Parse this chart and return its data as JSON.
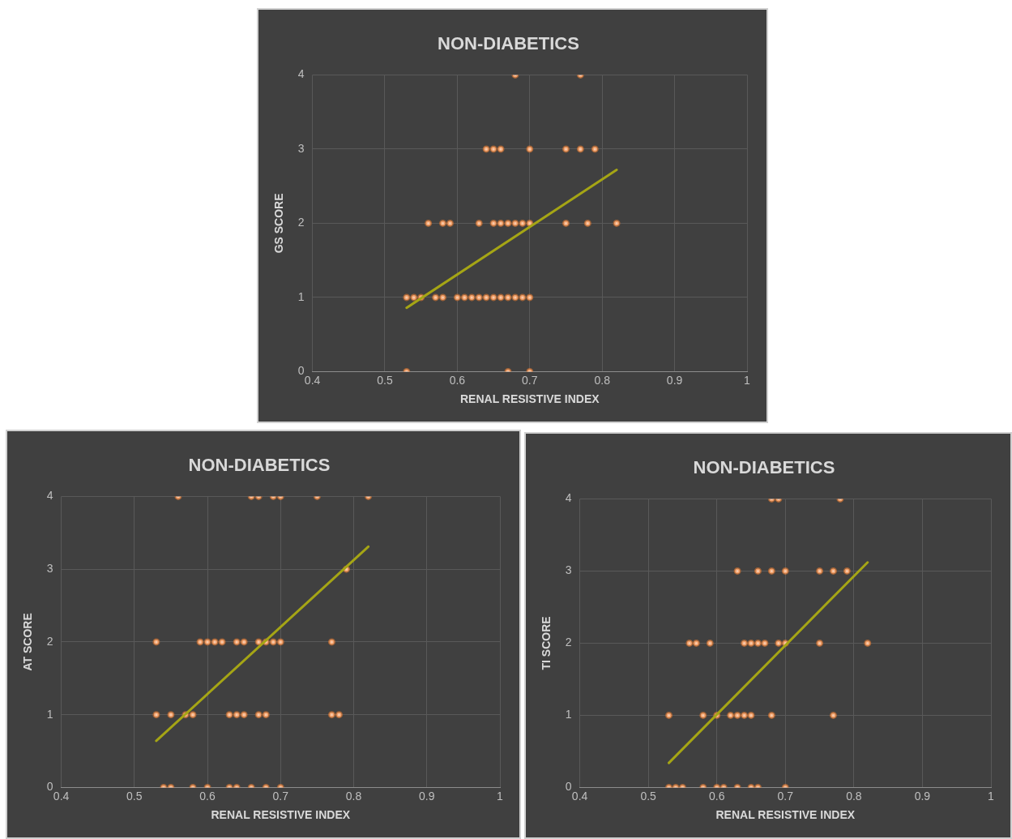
{
  "chart_data": [
    {
      "type": "scatter",
      "title": "NON-DIABETICS",
      "xlabel": "RENAL RESISTIVE INDEX",
      "ylabel": "GS SCORE",
      "xlim": [
        0.4,
        1
      ],
      "xticks": [
        0.4,
        0.5,
        0.6,
        0.7,
        0.8,
        0.9,
        1
      ],
      "ylim": [
        0,
        4
      ],
      "yticks": [
        0,
        1,
        2,
        3,
        4
      ],
      "grid": true,
      "series": [
        {
          "type": "scatter",
          "marker": "circle",
          "color": "#f8cbad",
          "x": [
            0.68,
            0.77,
            0.64,
            0.65,
            0.66,
            0.7,
            0.75,
            0.77,
            0.79,
            0.56,
            0.58,
            0.59,
            0.63,
            0.65,
            0.66,
            0.67,
            0.68,
            0.69,
            0.7,
            0.75,
            0.78,
            0.82,
            0.53,
            0.54,
            0.55,
            0.57,
            0.58,
            0.6,
            0.61,
            0.62,
            0.63,
            0.64,
            0.65,
            0.66,
            0.67,
            0.68,
            0.69,
            0.7,
            0.53,
            0.67,
            0.7
          ],
          "values": [
            4,
            4,
            3,
            3,
            3,
            3,
            3,
            3,
            3,
            2,
            2,
            2,
            2,
            2,
            2,
            2,
            2,
            2,
            2,
            2,
            2,
            2,
            1,
            1,
            1,
            1,
            1,
            1,
            1,
            1,
            1,
            1,
            1,
            1,
            1,
            1,
            1,
            1,
            0,
            0,
            0
          ]
        },
        {
          "type": "line",
          "marker": "none",
          "color": "#a5a515",
          "x": [
            0.53,
            0.82
          ],
          "values": [
            0.86,
            2.72
          ]
        }
      ]
    },
    {
      "type": "scatter",
      "title": "NON-DIABETICS",
      "xlabel": "RENAL RESISTIVE INDEX",
      "ylabel": "AT SCORE",
      "xlim": [
        0.4,
        1
      ],
      "xticks": [
        0.4,
        0.5,
        0.6,
        0.7,
        0.8,
        0.9,
        1
      ],
      "ylim": [
        0,
        4
      ],
      "yticks": [
        0,
        1,
        2,
        3,
        4
      ],
      "grid": true,
      "series": [
        {
          "type": "scatter",
          "marker": "circle",
          "color": "#f8cbad",
          "x": [
            0.56,
            0.66,
            0.67,
            0.69,
            0.7,
            0.75,
            0.82,
            0.79,
            0.53,
            0.59,
            0.6,
            0.61,
            0.62,
            0.64,
            0.65,
            0.67,
            0.68,
            0.69,
            0.7,
            0.77,
            0.53,
            0.55,
            0.57,
            0.58,
            0.63,
            0.64,
            0.65,
            0.67,
            0.68,
            0.77,
            0.78,
            0.54,
            0.55,
            0.58,
            0.6,
            0.63,
            0.64,
            0.66,
            0.68,
            0.7
          ],
          "values": [
            4,
            4,
            4,
            4,
            4,
            4,
            4,
            3,
            2,
            2,
            2,
            2,
            2,
            2,
            2,
            2,
            2,
            2,
            2,
            2,
            1,
            1,
            1,
            1,
            1,
            1,
            1,
            1,
            1,
            1,
            1,
            0,
            0,
            0,
            0,
            0,
            0,
            0,
            0,
            0
          ]
        },
        {
          "type": "line",
          "marker": "none",
          "color": "#a5a515",
          "x": [
            0.53,
            0.82
          ],
          "values": [
            0.64,
            3.31
          ]
        }
      ]
    },
    {
      "type": "scatter",
      "title": "NON-DIABETICS",
      "xlabel": "RENAL RESISTIVE INDEX",
      "ylabel": "TI SCORE",
      "xlim": [
        0.4,
        1
      ],
      "xticks": [
        0.4,
        0.5,
        0.6,
        0.7,
        0.8,
        0.9,
        1
      ],
      "ylim": [
        0,
        4
      ],
      "yticks": [
        0,
        1,
        2,
        3,
        4
      ],
      "grid": true,
      "series": [
        {
          "type": "scatter",
          "marker": "circle",
          "color": "#f8cbad",
          "x": [
            0.68,
            0.69,
            0.78,
            0.63,
            0.66,
            0.68,
            0.7,
            0.75,
            0.77,
            0.79,
            0.56,
            0.57,
            0.59,
            0.64,
            0.65,
            0.66,
            0.67,
            0.69,
            0.7,
            0.75,
            0.82,
            0.53,
            0.58,
            0.6,
            0.62,
            0.63,
            0.64,
            0.65,
            0.68,
            0.77,
            0.53,
            0.54,
            0.55,
            0.58,
            0.6,
            0.61,
            0.63,
            0.65,
            0.66,
            0.7
          ],
          "values": [
            4,
            4,
            4,
            3,
            3,
            3,
            3,
            3,
            3,
            3,
            2,
            2,
            2,
            2,
            2,
            2,
            2,
            2,
            2,
            2,
            2,
            1,
            1,
            1,
            1,
            1,
            1,
            1,
            1,
            1,
            0,
            0,
            0,
            0,
            0,
            0,
            0,
            0,
            0,
            0
          ]
        },
        {
          "type": "line",
          "marker": "none",
          "color": "#a5a515",
          "x": [
            0.53,
            0.82
          ],
          "values": [
            0.34,
            3.12
          ]
        }
      ]
    }
  ]
}
